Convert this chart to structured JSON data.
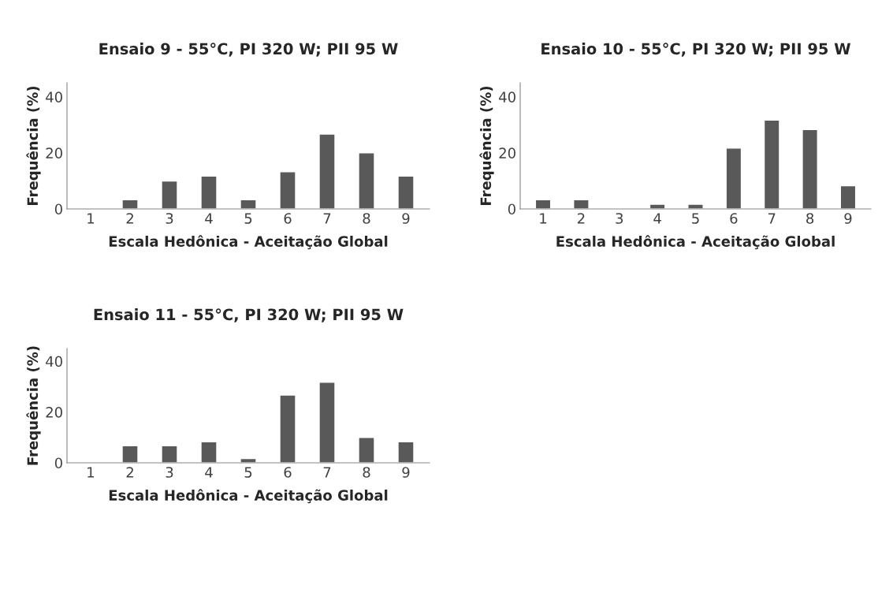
{
  "chart_data": [
    {
      "type": "bar",
      "title": "Ensaio 9 - 55°C, PI 320 W; PII 95 W",
      "xlabel": "Escala Hedônica - Aceitação Global",
      "ylabel": "Frequência (%)",
      "categories": [
        "1",
        "2",
        "3",
        "4",
        "5",
        "6",
        "7",
        "8",
        "9"
      ],
      "values": [
        null,
        3.3,
        10,
        11.7,
        3.3,
        13.3,
        26.7,
        20,
        11.7
      ],
      "color": "#595959",
      "ylim": [
        0,
        45
      ],
      "yticks": [
        0,
        20,
        40
      ],
      "grid": false,
      "legend": false
    },
    {
      "type": "bar",
      "title": "Ensaio 10 - 55°C, PI 320 W; PII 95 W",
      "xlabel": "Escala Hedônica - Aceitação Global",
      "ylabel": "Frequência (%)",
      "categories": [
        "1",
        "2",
        "3",
        "4",
        "5",
        "6",
        "7",
        "8",
        "9"
      ],
      "values": [
        3.3,
        3.3,
        null,
        1.7,
        1.7,
        21.7,
        31.7,
        28.3,
        8.3
      ],
      "color": "#595959",
      "ylim": [
        0,
        45
      ],
      "yticks": [
        0,
        20,
        40
      ],
      "grid": false,
      "legend": false
    },
    {
      "type": "bar",
      "title": "Ensaio 11 - 55°C, PI 320 W; PII 95 W",
      "xlabel": "Escala Hedônica - Aceitação Global",
      "ylabel": "Frequência (%)",
      "categories": [
        "1",
        "2",
        "3",
        "4",
        "5",
        "6",
        "7",
        "8",
        "9"
      ],
      "values": [
        null,
        6.7,
        6.7,
        8.3,
        1.7,
        26.7,
        31.7,
        10,
        8.3
      ],
      "color": "#595959",
      "ylim": [
        0,
        45
      ],
      "yticks": [
        0,
        20,
        40
      ],
      "grid": false,
      "legend": false
    }
  ]
}
